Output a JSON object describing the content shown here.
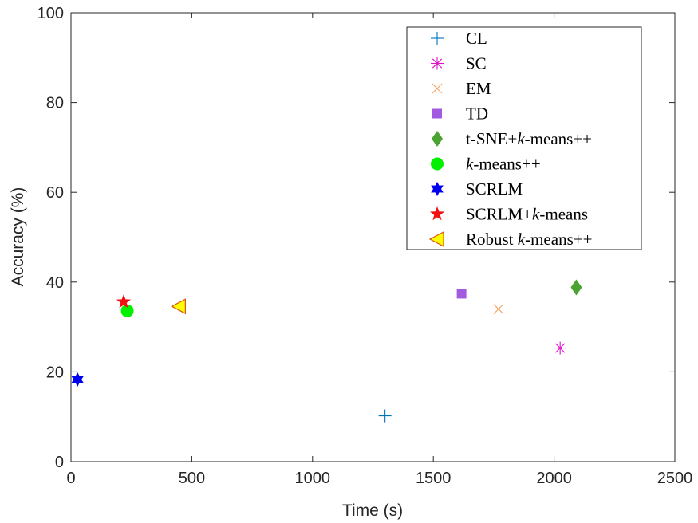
{
  "chart_data": {
    "type": "scatter",
    "xlabel": "Time (s)",
    "ylabel": "Accuracy (%)",
    "xlim": [
      0,
      2500
    ],
    "ylim": [
      0,
      100
    ],
    "xticks": [
      0,
      500,
      1000,
      1500,
      2000,
      2500
    ],
    "yticks": [
      0,
      20,
      40,
      60,
      80,
      100
    ],
    "grid": false,
    "legend_position": "top-right",
    "series": [
      {
        "name": "CL",
        "legend_parts": [
          {
            "t": "CL",
            "it": false
          }
        ],
        "marker": "plus",
        "color": "#0072BD",
        "x": 1300,
        "y": 10.2
      },
      {
        "name": "SC",
        "legend_parts": [
          {
            "t": "SC",
            "it": false
          }
        ],
        "marker": "asterisk",
        "color": "#E010C8",
        "x": 2025,
        "y": 25.3
      },
      {
        "name": "EM",
        "legend_parts": [
          {
            "t": "EM",
            "it": false
          }
        ],
        "marker": "cross",
        "color": "#F2A05C",
        "x": 1770,
        "y": 34.0
      },
      {
        "name": "TD",
        "legend_parts": [
          {
            "t": "TD",
            "it": false
          }
        ],
        "marker": "square",
        "color": "#A25AE0",
        "x": 1617,
        "y": 37.4
      },
      {
        "name": "t-SNE+k-means++",
        "legend_parts": [
          {
            "t": "t-SNE+",
            "it": false
          },
          {
            "t": "k",
            "it": true
          },
          {
            "t": "-means++",
            "it": false
          }
        ],
        "marker": "diamond",
        "color": "#4BA331",
        "x": 2092,
        "y": 38.8
      },
      {
        "name": "k-means++",
        "legend_parts": [
          {
            "t": "k",
            "it": true
          },
          {
            "t": "-means++",
            "it": false
          }
        ],
        "marker": "circle",
        "color": "#00F000",
        "x": 233,
        "y": 33.6
      },
      {
        "name": "SCRLM",
        "legend_parts": [
          {
            "t": "SCRLM",
            "it": false
          }
        ],
        "marker": "hexagram",
        "color": "#0000F0",
        "x": 27,
        "y": 18.3
      },
      {
        "name": "SCRLM+k-means",
        "legend_parts": [
          {
            "t": "SCRLM+",
            "it": false
          },
          {
            "t": "k",
            "it": true
          },
          {
            "t": "-means",
            "it": false
          }
        ],
        "marker": "pentagram",
        "color": "#F01010",
        "x": 218,
        "y": 35.6
      },
      {
        "name": "Robust k-means++",
        "legend_parts": [
          {
            "t": "Robust ",
            "it": false
          },
          {
            "t": "k",
            "it": true
          },
          {
            "t": "-means++",
            "it": false
          }
        ],
        "marker": "triangle-left",
        "color": "#FFFF00",
        "edge_color": "#D95319",
        "x": 447,
        "y": 34.6
      }
    ]
  }
}
